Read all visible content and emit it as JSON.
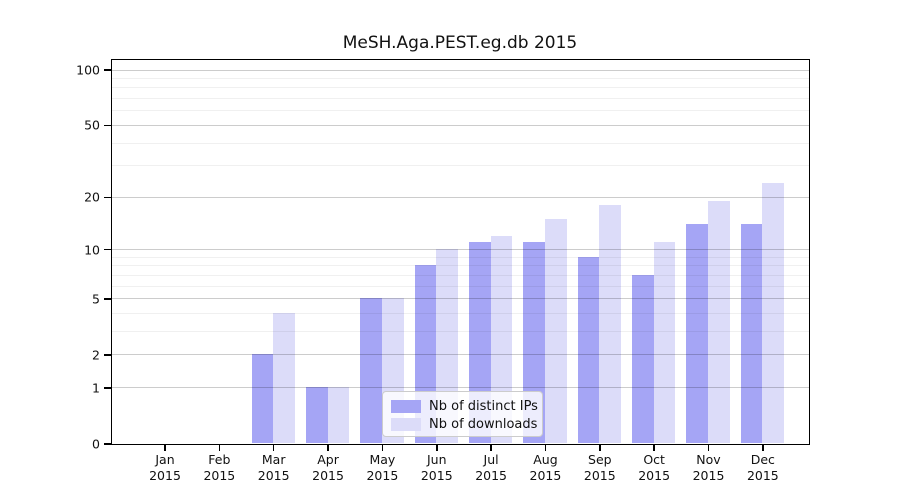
{
  "title": "MeSH.Aga.PEST.eg.db 2015",
  "colors": {
    "bar_distinct_ips": "#a5a5f5",
    "bar_downloads": "#dcdcf9",
    "grid_major": "rgba(0,0,0,0.20)",
    "grid_minor": "rgba(0,0,0,0.06)",
    "axis": "#000000"
  },
  "chart_data": {
    "type": "bar",
    "title": "MeSH.Aga.PEST.eg.db 2015",
    "categories": [
      "Jan 2015",
      "Feb 2015",
      "Mar 2015",
      "Apr 2015",
      "May 2015",
      "Jun 2015",
      "Jul 2015",
      "Aug 2015",
      "Sep 2015",
      "Oct 2015",
      "Nov 2015",
      "Dec 2015"
    ],
    "series": [
      {
        "name": "Nb of distinct IPs",
        "color_key": "bar_distinct_ips",
        "values": [
          0,
          0,
          2,
          1,
          5,
          8,
          11,
          11,
          9,
          7,
          14,
          14
        ]
      },
      {
        "name": "Nb of downloads",
        "color_key": "bar_downloads",
        "values": [
          0,
          0,
          4,
          1,
          5,
          10,
          12,
          15,
          18,
          11,
          19,
          24
        ]
      }
    ],
    "yscale": "log1p",
    "ylim": [
      0,
      100
    ],
    "y_ticks": [
      0,
      1,
      2,
      5,
      10,
      20,
      50,
      100
    ],
    "y_minor_gridlines": [
      3,
      4,
      6,
      7,
      8,
      9,
      30,
      40,
      60,
      70,
      80,
      90
    ],
    "grid": true,
    "legend_position": "inside-bottom-center"
  }
}
